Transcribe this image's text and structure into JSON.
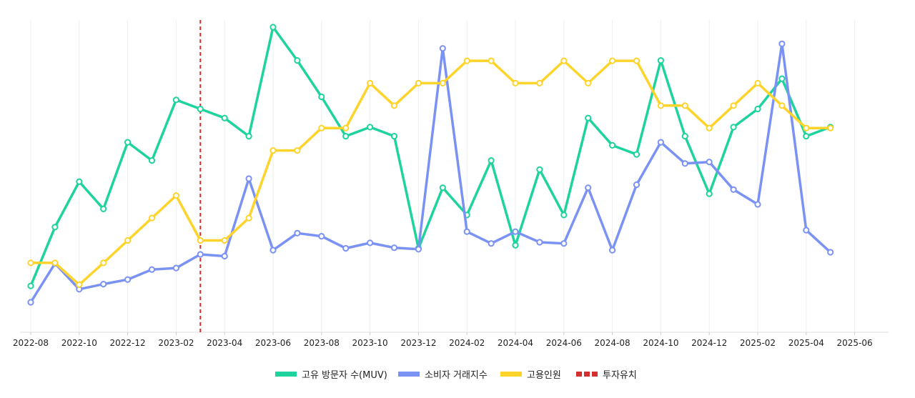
{
  "chart_data": {
    "type": "line",
    "title": "",
    "xlabel": "",
    "ylabel": "",
    "grid": "vertical-only",
    "legend_position": "bottom-center",
    "x": [
      "2022-08",
      "2022-09",
      "2022-10",
      "2022-11",
      "2022-12",
      "2023-01",
      "2023-02",
      "2023-03",
      "2023-04",
      "2023-05",
      "2023-06",
      "2023-07",
      "2023-08",
      "2023-09",
      "2023-10",
      "2023-11",
      "2023-12",
      "2024-01",
      "2024-02",
      "2024-03",
      "2024-04",
      "2024-05",
      "2024-06",
      "2024-07",
      "2024-08",
      "2024-09",
      "2024-10",
      "2024-11",
      "2024-12",
      "2025-01",
      "2025-02",
      "2025-03",
      "2025-04",
      "2025-05"
    ],
    "x_ticks": [
      "2022-08",
      "2022-10",
      "2022-12",
      "2023-02",
      "2023-04",
      "2023-06",
      "2023-08",
      "2023-10",
      "2023-12",
      "2024-02",
      "2024-04",
      "2024-06",
      "2024-08",
      "2024-10",
      "2024-12",
      "2025-02",
      "2025-04",
      "2025-06"
    ],
    "x_grid_months": [
      "2022-08",
      "2022-10",
      "2022-12",
      "2023-02",
      "2023-04",
      "2023-06",
      "2023-08",
      "2023-10",
      "2023-12",
      "2024-02",
      "2024-04",
      "2024-06",
      "2024-08",
      "2024-10",
      "2024-12",
      "2025-02",
      "2025-04",
      "2025-06"
    ],
    "ylim": [
      0,
      100
    ],
    "series": [
      {
        "name": "고유 방문자 수(MUV)",
        "color": "#1ED39D",
        "values": [
          14.6,
          34.0,
          49.0,
          40.0,
          62.0,
          56.0,
          76.0,
          73.0,
          70.0,
          64.0,
          100.0,
          89.0,
          77.0,
          64.0,
          67.0,
          64.0,
          27.0,
          47.0,
          38.0,
          56.0,
          28.0,
          53.0,
          38.0,
          70.0,
          61.0,
          58.0,
          89.0,
          64.0,
          45.0,
          67.0,
          73.0,
          83.0,
          64.0,
          67.0
        ]
      },
      {
        "name": "소비자 거래지수",
        "color": "#7B92F5",
        "values": [
          9.2,
          22.0,
          13.5,
          15.2,
          16.7,
          20.0,
          20.5,
          25.0,
          24.4,
          50.0,
          26.4,
          32.0,
          31.0,
          27.0,
          28.8,
          27.2,
          26.7,
          93.0,
          32.5,
          28.6,
          32.5,
          29.0,
          28.6,
          47.0,
          26.4,
          48.0,
          62.0,
          55.0,
          55.5,
          46.4,
          41.5,
          94.5,
          33.0,
          25.7
        ]
      },
      {
        "name": "고용인원",
        "color": "#FED42B",
        "values": [
          22.2,
          22.2,
          15.0,
          22.2,
          29.6,
          37.0,
          44.4,
          29.6,
          29.6,
          37.0,
          59.3,
          59.3,
          66.7,
          66.7,
          81.5,
          74.1,
          81.5,
          81.5,
          88.9,
          88.9,
          81.5,
          81.5,
          88.9,
          81.5,
          88.9,
          88.9,
          74.1,
          74.1,
          66.7,
          74.1,
          81.5,
          74.1,
          66.7,
          66.7
        ]
      }
    ],
    "event_line": {
      "name": "투자유치",
      "x": "2023-03",
      "color": "#D42F2F"
    }
  },
  "legend": [
    {
      "label": "고유 방문자 수(MUV)",
      "color": "#1ED39D",
      "style": "solid"
    },
    {
      "label": "소비자 거래지수",
      "color": "#7B92F5",
      "style": "solid"
    },
    {
      "label": "고용인원",
      "color": "#FED42B",
      "style": "solid"
    },
    {
      "label": "투자유치",
      "color": "#D42F2F",
      "style": "dashed"
    }
  ]
}
